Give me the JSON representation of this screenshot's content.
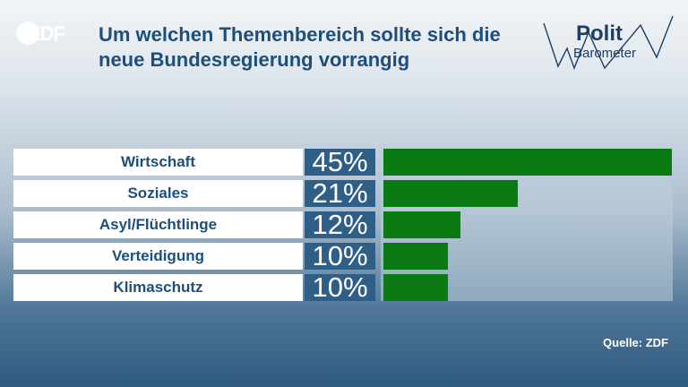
{
  "branding": {
    "channel_logo": "ZDF",
    "series_logo_line1": "Polit",
    "series_logo_line2": "Barometer"
  },
  "title_lines": [
    "Um welchen Themenbereich sollte sich die",
    "neue Bundesregierung vorrangig"
  ],
  "source": "Quelle: ZDF",
  "colors": {
    "bar": "#0a7a12",
    "percent_box": "#2f5f86",
    "title": "#1d4f7c"
  },
  "chart_data": {
    "type": "bar",
    "orientation": "horizontal",
    "categories": [
      "Wirtschaft",
      "Soziales",
      "Asyl/Flüchtlinge",
      "Verteidigung",
      "Klimaschutz"
    ],
    "values": [
      45,
      21,
      12,
      10,
      10
    ],
    "value_labels": [
      "45%",
      "21%",
      "12%",
      "10%",
      "10%"
    ],
    "unit": "%",
    "xlim": [
      0,
      45
    ]
  }
}
